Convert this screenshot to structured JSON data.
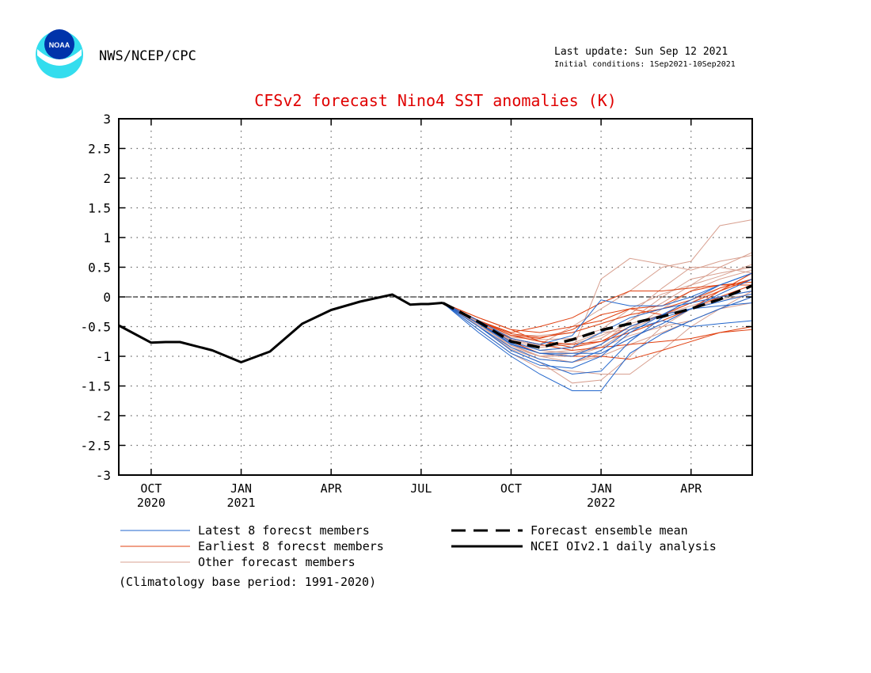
{
  "header": {
    "agency": "NWS/NCEP/CPC",
    "logo_text": "NOAA",
    "last_update": "Last update: Sun Sep 12 2021",
    "initial_conditions": "Initial conditions: 1Sep2021-10Sep2021"
  },
  "colors": {
    "title": "#e00000",
    "latest": "#2266cc",
    "earliest": "#e04010",
    "other": "#d8a090",
    "mean": "#000000",
    "analysis": "#000000",
    "logo_outer": "#33ddee",
    "logo_inner": "#0033aa"
  },
  "chart_data": {
    "type": "line",
    "title": "CFSv2 forecast Nino4 SST anomalies (K)",
    "ylim": [
      -3,
      3
    ],
    "xlim": [
      2020.7,
      2022.46
    ],
    "y_ticks": [
      {
        "v": 3,
        "label": "3"
      },
      {
        "v": 2.5,
        "label": "2.5"
      },
      {
        "v": 2,
        "label": "2"
      },
      {
        "v": 1.5,
        "label": "1.5"
      },
      {
        "v": 1,
        "label": "1"
      },
      {
        "v": 0.5,
        "label": "0.5"
      },
      {
        "v": 0,
        "label": "0"
      },
      {
        "v": -0.5,
        "label": "-0.5"
      },
      {
        "v": -1,
        "label": "-1"
      },
      {
        "v": -1.5,
        "label": "-1.5"
      },
      {
        "v": -2,
        "label": "-2"
      },
      {
        "v": -2.5,
        "label": "-2.5"
      },
      {
        "v": -3,
        "label": "-3"
      }
    ],
    "x_ticks": [
      {
        "v": 2020.79,
        "label": "OCT",
        "label2": "2020"
      },
      {
        "v": 2021.04,
        "label": "JAN",
        "label2": "2021"
      },
      {
        "v": 2021.29,
        "label": "APR",
        "label2": ""
      },
      {
        "v": 2021.54,
        "label": "JUL",
        "label2": ""
      },
      {
        "v": 2021.79,
        "label": "OCT",
        "label2": ""
      },
      {
        "v": 2022.04,
        "label": "JAN",
        "label2": "2022"
      },
      {
        "v": 2022.29,
        "label": "APR",
        "label2": ""
      }
    ],
    "grid": true,
    "zero_line": true,
    "analysis": {
      "name": "NCEI OIv2.1 daily analysis",
      "x": [
        2020.7,
        2020.79,
        2020.83,
        2020.87,
        2020.96,
        2021.04,
        2021.12,
        2021.21,
        2021.29,
        2021.37,
        2021.46,
        2021.51,
        2021.54,
        2021.56,
        2021.6
      ],
      "y": [
        -0.48,
        -0.77,
        -0.76,
        -0.76,
        -0.9,
        -1.1,
        -0.92,
        -0.45,
        -0.22,
        -0.08,
        0.04,
        -0.13,
        -0.12,
        -0.12,
        -0.1
      ]
    },
    "forecast_x": [
      2021.6,
      2021.7,
      2021.79,
      2021.87,
      2021.96,
      2022.04,
      2022.12,
      2022.21,
      2022.29,
      2022.37,
      2022.46
    ],
    "ensemble_mean": {
      "name": "Forecast ensemble mean",
      "y": [
        -0.1,
        -0.42,
        -0.75,
        -0.85,
        -0.72,
        -0.56,
        -0.45,
        -0.33,
        -0.2,
        -0.04,
        0.19
      ]
    },
    "series_groups": [
      {
        "name": "Latest 8 forecst members",
        "color": "#2266cc",
        "members": [
          [
            -0.1,
            -0.6,
            -1.0,
            -1.3,
            -1.58,
            -1.58,
            -0.95,
            -0.62,
            -0.4,
            -0.2,
            0.0
          ],
          [
            -0.1,
            -0.5,
            -0.9,
            -1.1,
            -1.3,
            -1.25,
            -0.75,
            -0.35,
            -0.2,
            -0.08,
            0.05
          ],
          [
            -0.1,
            -0.45,
            -0.8,
            -0.95,
            -0.95,
            -0.95,
            -0.7,
            -0.45,
            -0.2,
            0.05,
            0.3
          ],
          [
            -0.1,
            -0.5,
            -0.85,
            -1.05,
            -1.1,
            -0.9,
            -0.55,
            -0.4,
            -0.5,
            -0.45,
            -0.4
          ],
          [
            -0.1,
            -0.4,
            -0.7,
            -0.8,
            -0.65,
            -0.05,
            -0.15,
            -0.15,
            0.0,
            0.2,
            0.4
          ],
          [
            -0.1,
            -0.45,
            -0.75,
            -0.9,
            -0.85,
            -0.6,
            -0.35,
            -0.2,
            -0.1,
            0.0,
            0.1
          ],
          [
            -0.1,
            -0.55,
            -0.95,
            -1.15,
            -1.2,
            -1.0,
            -0.6,
            -0.3,
            -0.05,
            0.2,
            0.4
          ],
          [
            -0.1,
            -0.45,
            -0.78,
            -0.95,
            -1.0,
            -0.8,
            -0.5,
            -0.3,
            -0.2,
            -0.15,
            -0.1
          ]
        ]
      },
      {
        "name": "Earliest 8 forecst members",
        "color": "#e04010",
        "members": [
          [
            -0.1,
            -0.35,
            -0.55,
            -0.6,
            -0.5,
            -0.4,
            -0.2,
            -0.15,
            0.1,
            0.2,
            0.25
          ],
          [
            -0.1,
            -0.4,
            -0.65,
            -0.75,
            -0.8,
            -0.75,
            -0.5,
            -0.3,
            -0.1,
            0.1,
            0.3
          ],
          [
            -0.1,
            -0.45,
            -0.75,
            -0.95,
            -1.0,
            -1.0,
            -1.05,
            -0.9,
            -0.75,
            -0.6,
            -0.5
          ],
          [
            -0.1,
            -0.4,
            -0.6,
            -0.5,
            -0.35,
            -0.1,
            0.1,
            0.1,
            0.15,
            0.2,
            0.2
          ],
          [
            -0.1,
            -0.35,
            -0.55,
            -0.75,
            -0.85,
            -0.75,
            -0.6,
            -0.4,
            -0.2,
            0.1,
            0.4
          ],
          [
            -0.1,
            -0.4,
            -0.65,
            -0.7,
            -0.55,
            -0.3,
            -0.2,
            -0.3,
            -0.2,
            0.0,
            0.2
          ],
          [
            -0.1,
            -0.45,
            -0.7,
            -0.8,
            -0.9,
            -0.85,
            -0.8,
            -0.75,
            -0.7,
            -0.6,
            -0.55
          ],
          [
            -0.1,
            -0.4,
            -0.62,
            -0.68,
            -0.6,
            -0.45,
            -0.3,
            -0.2,
            -0.05,
            0.15,
            0.3
          ]
        ]
      },
      {
        "name": "Other forecast members",
        "color": "#d8a090",
        "members": [
          [
            -0.1,
            -0.45,
            -0.8,
            -0.95,
            -0.9,
            0.3,
            0.65,
            0.55,
            0.45,
            0.6,
            0.7
          ],
          [
            -0.1,
            -0.5,
            -0.9,
            -1.1,
            -1.45,
            -1.4,
            -1.0,
            -0.5,
            -0.2,
            0.1,
            0.3
          ],
          [
            -0.1,
            -0.4,
            -0.7,
            -0.8,
            -0.5,
            -0.2,
            0.1,
            0.5,
            0.6,
            1.2,
            1.3
          ],
          [
            -0.1,
            -0.45,
            -0.75,
            -0.9,
            -0.85,
            -0.7,
            -0.4,
            -0.1,
            0.2,
            0.5,
            0.75
          ],
          [
            -0.1,
            -0.55,
            -0.95,
            -1.2,
            -1.25,
            -1.3,
            -1.3,
            -0.9,
            -0.5,
            -0.2,
            0.1
          ],
          [
            -0.1,
            -0.45,
            -0.85,
            -1.0,
            -0.95,
            -0.8,
            -0.4,
            0.0,
            0.3,
            0.4,
            0.5
          ],
          [
            -0.1,
            -0.4,
            -0.65,
            -0.65,
            -0.6,
            -0.45,
            -0.3,
            0.15,
            0.5,
            0.5,
            0.4
          ],
          [
            -0.1,
            -0.5,
            -0.88,
            -1.05,
            -1.1,
            -0.95,
            -0.7,
            -0.45,
            -0.2,
            -0.05,
            0.05
          ],
          [
            -0.1,
            -0.42,
            -0.72,
            -0.82,
            -0.78,
            -0.6,
            -0.55,
            -0.3,
            -0.1,
            0.15,
            0.3
          ],
          [
            -0.1,
            -0.48,
            -0.82,
            -1.0,
            -1.0,
            -0.85,
            -0.55,
            -0.2,
            0.1,
            0.3,
            0.45
          ],
          [
            -0.1,
            -0.44,
            -0.76,
            -0.9,
            -0.95,
            -0.85,
            -0.65,
            -0.5,
            -0.4,
            -0.2,
            0.0
          ],
          [
            -0.1,
            -0.4,
            -0.68,
            -0.72,
            -0.7,
            -0.55,
            -0.2,
            0.05,
            0.2,
            0.35,
            0.55
          ],
          [
            -0.1,
            -0.46,
            -0.8,
            -1.0,
            -1.1,
            -1.0,
            -0.8,
            -0.6,
            -0.4,
            -0.2,
            -0.1
          ],
          [
            -0.1,
            -0.42,
            -0.74,
            -0.85,
            -0.8,
            -0.65,
            -0.45,
            -0.3,
            -0.15,
            0.0,
            0.1
          ]
        ]
      }
    ],
    "legend": {
      "placement": "bottom",
      "entries": [
        {
          "key": "latest",
          "label": "Latest 8 forecst members",
          "style": "thin",
          "color": "#2266cc"
        },
        {
          "key": "earliest",
          "label": "Earliest 8 forecst members",
          "style": "thin",
          "color": "#e04010"
        },
        {
          "key": "other",
          "label": "Other forecast members",
          "style": "thin",
          "color": "#d8a090"
        },
        {
          "key": "mean",
          "label": "Forecast ensemble mean",
          "style": "dashed",
          "color": "#000000"
        },
        {
          "key": "analysis",
          "label": "NCEI OIv2.1 daily analysis",
          "style": "solid",
          "color": "#000000"
        }
      ]
    },
    "note": "(Climatology base period: 1991-2020)"
  }
}
